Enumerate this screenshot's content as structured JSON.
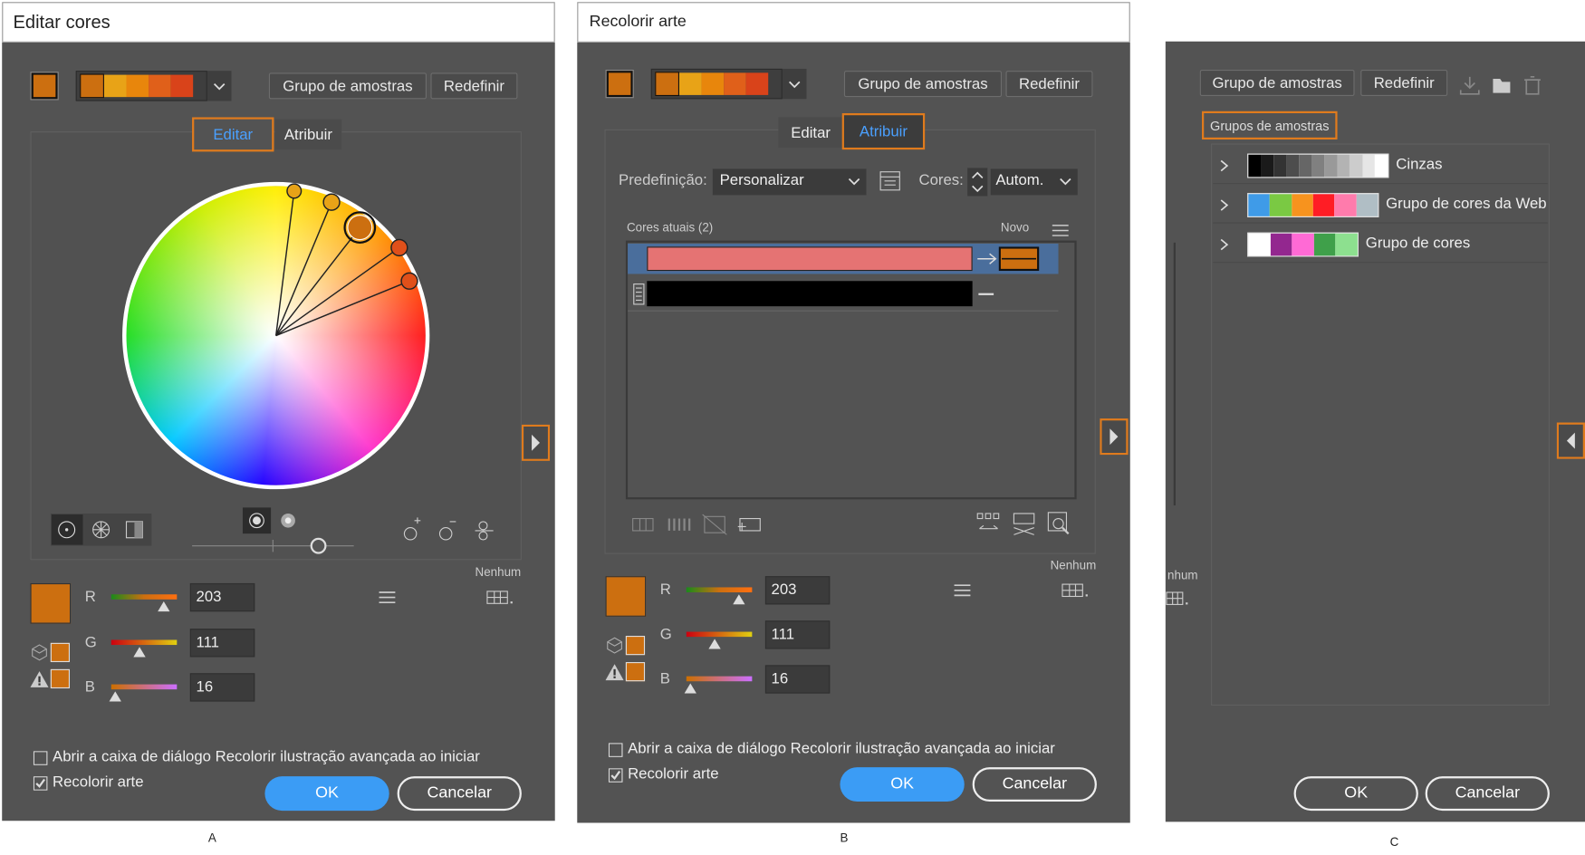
{
  "panel_a": {
    "title": "Editar cores",
    "swatch_group_button": "Grupo de amostras",
    "reset_button": "Redefinir",
    "tabs": [
      "Editar",
      "Atribuir"
    ],
    "channels": [
      {
        "label": "R",
        "value": 203
      },
      {
        "label": "G",
        "value": 111
      },
      {
        "label": "B",
        "value": 16
      }
    ],
    "none_label": "Nenhum",
    "options": [
      "Abrir a caixa de diálogo Recolorir ilustração avançada ao iniciar",
      "Recolorir arte"
    ],
    "ok_button": "OK",
    "cancel_button": "Cancelar",
    "caption": "A"
  },
  "panel_b": {
    "title": "Recolorir arte",
    "swatch_group_button": "Grupo de amostras",
    "reset_button": "Redefinir",
    "tabs": [
      "Editar",
      "Atribuir"
    ],
    "preset_label": "Predefinição:",
    "preset_value": "Personalizar",
    "colors_label": "Cores:",
    "colors_value": "Autom.",
    "current_colors_header": "Cores atuais (2)",
    "new_header": "Novo",
    "channels": [
      {
        "label": "R",
        "value": 203
      },
      {
        "label": "G",
        "value": 111
      },
      {
        "label": "B",
        "value": 16
      }
    ],
    "none_label": "Nenhum",
    "options": [
      "Abrir a caixa de diálogo Recolorir ilustração avançada ao iniciar",
      "Recolorir arte"
    ],
    "ok_button": "OK",
    "cancel_button": "Cancelar",
    "caption": "B"
  },
  "panel_c": {
    "swatch_group_button": "Grupo de amostras",
    "reset_button": "Redefinir",
    "section_title": "Grupos de amostras",
    "groups": [
      "Cinzas",
      "Grupo de cores da Web",
      "Grupo de cores"
    ],
    "partial_label": "nhum",
    "ok_button": "OK",
    "cancel_button": "Cancelar",
    "caption": "C"
  }
}
